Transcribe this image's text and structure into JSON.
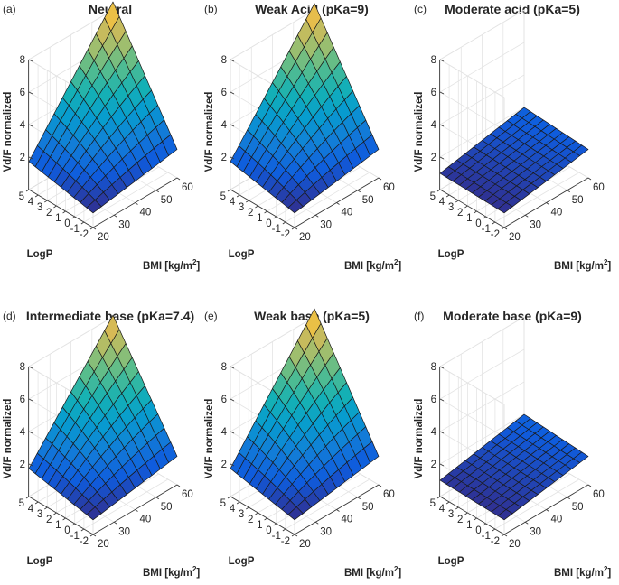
{
  "chart_data": [
    {
      "letter": "(a)",
      "title": "Neutral",
      "type": "surface",
      "xlabel": "LogP",
      "ylabel": "BMI [kg/m",
      "ylabel_sup": "2",
      "ylabel_close": "]",
      "zlabel": "Vd/F normalized",
      "x_ticks": [
        "5",
        "4",
        "3",
        "2",
        "1",
        "0",
        "-1",
        "-2"
      ],
      "y_ticks": [
        "20",
        "30",
        "40",
        "50",
        "60"
      ],
      "z_ticks": [
        "2",
        "4",
        "6",
        "8"
      ],
      "xlim": [
        -2,
        5
      ],
      "ylim": [
        20,
        60
      ],
      "zlim": [
        0,
        8
      ],
      "corners": {
        "logp_low_bmi_low": 0.9,
        "logp_low_bmi_high": 1.75,
        "logp_high_bmi_low": 1.72,
        "logp_high_bmi_high": 8.5
      },
      "curvature": 0.55
    },
    {
      "letter": "(b)",
      "title": "Weak Acid (pKa=9)",
      "type": "surface",
      "xlabel": "LogP",
      "ylabel": "BMI [kg/m",
      "ylabel_sup": "2",
      "ylabel_close": "]",
      "zlabel": "Vd/F normalized",
      "x_ticks": [
        "5",
        "4",
        "3",
        "2",
        "1",
        "0",
        "-1",
        "-2"
      ],
      "y_ticks": [
        "20",
        "30",
        "40",
        "50",
        "60"
      ],
      "z_ticks": [
        "2",
        "4",
        "6",
        "8"
      ],
      "xlim": [
        -2,
        5
      ],
      "ylim": [
        20,
        60
      ],
      "zlim": [
        0,
        8
      ],
      "corners": {
        "logp_low_bmi_low": 0.9,
        "logp_low_bmi_high": 1.75,
        "logp_high_bmi_low": 1.72,
        "logp_high_bmi_high": 8.4
      },
      "curvature": 0.55
    },
    {
      "letter": "(c)",
      "title": "Moderate acid (pKa=5)",
      "type": "surface",
      "xlabel": "LogP",
      "ylabel": "BMI [kg/m",
      "ylabel_sup": "2",
      "ylabel_close": "]",
      "zlabel": "Vd/F normalized",
      "x_ticks": [
        "5",
        "4",
        "3",
        "2",
        "1",
        "0",
        "-1",
        "-2"
      ],
      "y_ticks": [
        "20",
        "30",
        "40",
        "50",
        "60"
      ],
      "z_ticks": [
        "2",
        "4",
        "6",
        "8"
      ],
      "xlim": [
        -2,
        5
      ],
      "ylim": [
        20,
        60
      ],
      "zlim": [
        0,
        8
      ],
      "corners": {
        "logp_low_bmi_low": 0.9,
        "logp_low_bmi_high": 1.75,
        "logp_high_bmi_low": 1.0,
        "logp_high_bmi_high": 2.0
      },
      "curvature": 0.0
    },
    {
      "letter": "(d)",
      "title": "Intermediate base (pKa=7.4)",
      "type": "surface",
      "xlabel": "LogP",
      "ylabel": "BMI [kg/m",
      "ylabel_sup": "2",
      "ylabel_close": "]",
      "zlabel": "Vd/F normalized",
      "x_ticks": [
        "5",
        "4",
        "3",
        "2",
        "1",
        "0",
        "-1",
        "-2"
      ],
      "y_ticks": [
        "20",
        "30",
        "40",
        "50",
        "60"
      ],
      "z_ticks": [
        "2",
        "4",
        "6",
        "8"
      ],
      "xlim": [
        -2,
        5
      ],
      "ylim": [
        20,
        60
      ],
      "zlim": [
        0,
        8
      ],
      "corners": {
        "logp_low_bmi_low": 0.9,
        "logp_low_bmi_high": 1.75,
        "logp_high_bmi_low": 1.72,
        "logp_high_bmi_high": 8.1
      },
      "curvature": 0.5
    },
    {
      "letter": "(e)",
      "title": "Weak base (pKa=5)",
      "type": "surface",
      "xlabel": "LogP",
      "ylabel": "BMI [kg/m",
      "ylabel_sup": "2",
      "ylabel_close": "]",
      "zlabel": "Vd/F normalized",
      "x_ticks": [
        "5",
        "4",
        "3",
        "2",
        "1",
        "0",
        "-1",
        "-2"
      ],
      "y_ticks": [
        "20",
        "30",
        "40",
        "50",
        "60"
      ],
      "z_ticks": [
        "2",
        "4",
        "6",
        "8"
      ],
      "xlim": [
        -2,
        5
      ],
      "ylim": [
        20,
        60
      ],
      "zlim": [
        0,
        8
      ],
      "corners": {
        "logp_low_bmi_low": 0.9,
        "logp_low_bmi_high": 1.75,
        "logp_high_bmi_low": 1.72,
        "logp_high_bmi_high": 8.5
      },
      "curvature": 0.55
    },
    {
      "letter": "(f)",
      "title": "Moderate base (pKa=9)",
      "type": "surface",
      "xlabel": "LogP",
      "ylabel": "BMI [kg/m",
      "ylabel_sup": "2",
      "ylabel_close": "]",
      "zlabel": "Vd/F normalized",
      "x_ticks": [
        "5",
        "4",
        "3",
        "2",
        "1",
        "0",
        "-1",
        "-2"
      ],
      "y_ticks": [
        "20",
        "30",
        "40",
        "50",
        "60"
      ],
      "z_ticks": [
        "2",
        "4",
        "6",
        "8"
      ],
      "xlim": [
        -2,
        5
      ],
      "ylim": [
        20,
        60
      ],
      "zlim": [
        0,
        8
      ],
      "corners": {
        "logp_low_bmi_low": 0.9,
        "logp_low_bmi_high": 1.75,
        "logp_high_bmi_low": 1.0,
        "logp_high_bmi_high": 2.0
      },
      "curvature": 0.0
    }
  ]
}
